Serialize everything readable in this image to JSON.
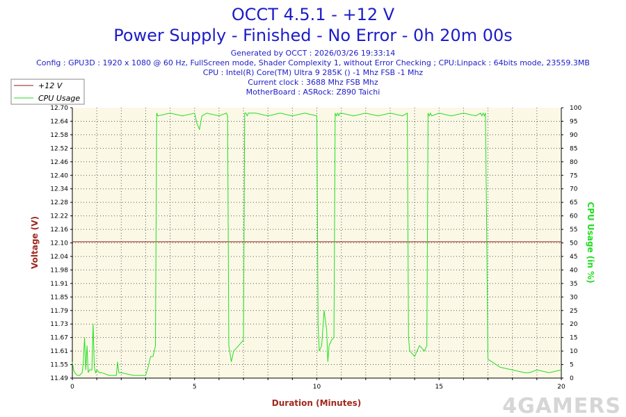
{
  "header": {
    "title": "OCCT 4.5.1 - +12 V",
    "subtitle": "Power Supply - Finished - No Error - 0h 20m 00s",
    "info_lines": [
      "Generated by OCCT : 2026/03/26 19:33:14",
      "Config : GPU3D : 1920 x 1080 @ 60 Hz, FullScreen mode, Shader Complexity 1, without Error Checking ; CPU:Linpack : 64bits mode, 23559.3MB",
      "CPU : Intel(R) Core(TM) Ultra 9 285K () -1 Mhz FSB -1 Mhz",
      "Current clock : 3688 Mhz FSB  Mhz",
      "MotherBoard : ASRock: Z890 Taichi"
    ]
  },
  "watermark": "4GAMERS",
  "colors": {
    "voltage": "#8b1a1a",
    "cpu": "#22dd22",
    "title": "#1c1cc8",
    "axis_title_left": "#a0281e",
    "plot_bg": "#fbf9e6"
  },
  "chart_data": {
    "type": "line",
    "xlabel": "Duration (Minutes)",
    "ylabel_left": "Voltage (V)",
    "ylabel_right": "CPU Usage (in %)",
    "xlim": [
      0,
      20
    ],
    "ylim_left": [
      11.49,
      12.7
    ],
    "ylim_right": [
      0,
      100
    ],
    "x_ticks": [
      "0",
      "5",
      "10",
      "15",
      "20"
    ],
    "y_left_ticks": [
      "11.49",
      "11.55",
      "11.61",
      "11.67",
      "11.73",
      "11.79",
      "11.85",
      "11.91",
      "11.98",
      "12.04",
      "12.10",
      "12.16",
      "12.22",
      "12.28",
      "12.34",
      "12.40",
      "12.46",
      "12.52",
      "12.58",
      "12.64",
      "12.70"
    ],
    "y_right_ticks": [
      "0",
      "5",
      "10",
      "15",
      "20",
      "25",
      "30",
      "35",
      "40",
      "45",
      "50",
      "55",
      "60",
      "65",
      "70",
      "75",
      "80",
      "85",
      "90",
      "95",
      "100"
    ],
    "grid": true,
    "legend_position": "top-left",
    "series": [
      {
        "name": "+12 V",
        "axis": "left",
        "x": [
          0,
          20
        ],
        "values": [
          12.1,
          12.1
        ]
      },
      {
        "name": "CPU Usage",
        "axis": "right",
        "x": [
          0,
          0.05,
          0.1,
          0.2,
          0.3,
          0.4,
          0.45,
          0.5,
          0.55,
          0.6,
          0.65,
          0.7,
          0.8,
          0.85,
          0.9,
          0.95,
          1.0,
          1.1,
          1.2,
          1.5,
          1.8,
          1.85,
          1.9,
          2.0,
          2.5,
          3.0,
          3.1,
          3.2,
          3.3,
          3.35,
          3.4,
          3.45,
          3.5,
          4.0,
          4.5,
          5.0,
          5.1,
          5.2,
          5.3,
          5.5,
          6.0,
          6.3,
          6.35,
          6.4,
          6.5,
          6.6,
          6.8,
          7.0,
          7.05,
          7.1,
          7.15,
          7.2,
          7.5,
          8.0,
          8.5,
          9.0,
          9.5,
          10.0,
          10.05,
          10.1,
          10.2,
          10.3,
          10.4,
          10.45,
          10.5,
          10.6,
          10.7,
          10.75,
          10.8,
          10.85,
          10.9,
          10.95,
          11.0,
          11.5,
          12.0,
          12.5,
          13.0,
          13.5,
          13.7,
          13.75,
          13.8,
          13.9,
          14.0,
          14.2,
          14.4,
          14.5,
          14.55,
          14.6,
          14.65,
          14.7,
          15.0,
          15.5,
          16.0,
          16.5,
          16.7,
          16.75,
          16.8,
          16.85,
          16.9,
          17.0,
          17.5,
          18.0,
          18.5,
          18.6,
          18.7,
          19.0,
          19.5,
          20.0
        ],
        "values": [
          6,
          3,
          2,
          1,
          1,
          2,
          6,
          15,
          3,
          12,
          2,
          3,
          3,
          20,
          4,
          2,
          3,
          2,
          2,
          1,
          1,
          6,
          2,
          2,
          1,
          1,
          4,
          8,
          8,
          10,
          12,
          98,
          97,
          98,
          97,
          98,
          94,
          92,
          97,
          98,
          97,
          98,
          97,
          12,
          6,
          10,
          12,
          14,
          98,
          98,
          97,
          98,
          98,
          97,
          98,
          97,
          98,
          97,
          20,
          10,
          12,
          25,
          18,
          6,
          12,
          14,
          15,
          98,
          97,
          98,
          97,
          98,
          98,
          97,
          98,
          97,
          98,
          97,
          98,
          15,
          10,
          9,
          8,
          12,
          10,
          12,
          98,
          97,
          98,
          97,
          98,
          97,
          98,
          97,
          98,
          97,
          98,
          97,
          98,
          7,
          4,
          3,
          2,
          2,
          2,
          3,
          2,
          3
        ]
      }
    ]
  }
}
